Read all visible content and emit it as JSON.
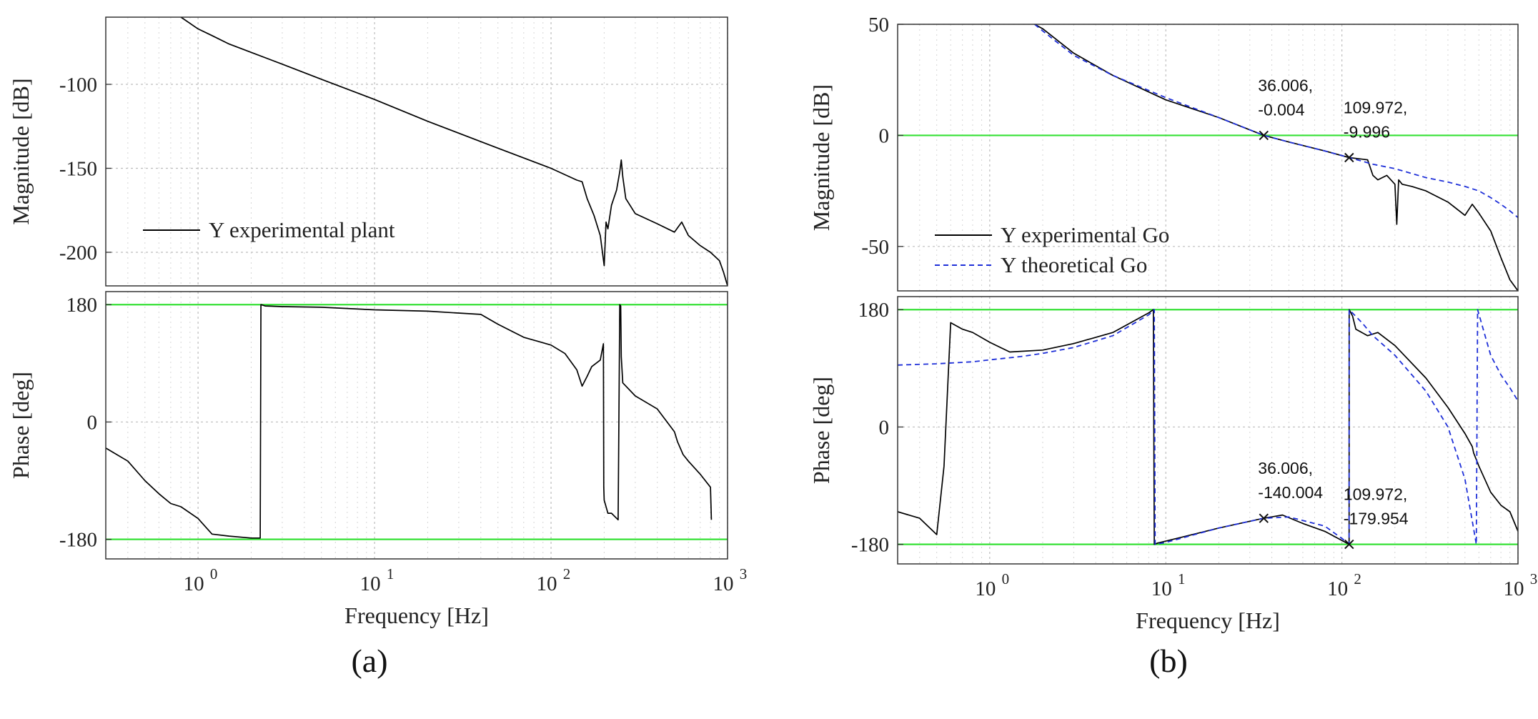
{
  "colors": {
    "experimental": "#000000",
    "theoretical": "#1e2fd8",
    "reference": "#35e135"
  },
  "panel_labels": [
    "(a)",
    "(b)"
  ],
  "chart_data": [
    {
      "id": "a-magnitude",
      "type": "line",
      "xscale": "log",
      "xlim": [
        0.3,
        1000
      ],
      "ylim": [
        -220,
        -60
      ],
      "ylabel": "Magnitude [dB]",
      "xlabel": "",
      "yticks": [
        -100,
        -150,
        -200
      ],
      "ytick_labels": [
        "-100",
        "-150",
        "-200"
      ],
      "legend": {
        "position": "lower-left",
        "entries": [
          "Y experimental plant"
        ]
      },
      "series": [
        {
          "name": "Y experimental plant",
          "style": "solid",
          "color": "experimental",
          "x": [
            0.8,
            1.0,
            1.2,
            1.5,
            2,
            3,
            5,
            10,
            20,
            50,
            100,
            140,
            150,
            160,
            175,
            190,
            200,
            205,
            210,
            220,
            235,
            245,
            250,
            255,
            265,
            300,
            400,
            500,
            550,
            600,
            700,
            800,
            900,
            950,
            1000
          ],
          "y": [
            -60,
            -67,
            -71,
            -76,
            -81,
            -88,
            -97,
            -109,
            -122,
            -138,
            -150,
            -157,
            -158,
            -168,
            -178,
            -190,
            -208,
            -182,
            -186,
            -172,
            -163,
            -152,
            -145,
            -155,
            -168,
            -177,
            -183,
            -188,
            -182,
            -190,
            -196,
            -200,
            -205,
            -212,
            -220
          ]
        }
      ]
    },
    {
      "id": "a-phase",
      "type": "line",
      "xscale": "log",
      "xlim": [
        0.3,
        1000
      ],
      "ylim": [
        -210,
        200
      ],
      "ylabel": "Phase [deg]",
      "xlabel": "Frequency [Hz]",
      "xticks": [
        1,
        10,
        100,
        1000
      ],
      "xtick_labels": [
        "10",
        "10",
        "10",
        "10"
      ],
      "xtick_exponents": [
        "0",
        "1",
        "2",
        "3"
      ],
      "yticks": [
        180,
        0,
        -180
      ],
      "ytick_labels": [
        "180",
        "0",
        "-180"
      ],
      "hlines": [
        180,
        -180
      ],
      "series": [
        {
          "name": "Y experimental plant",
          "style": "solid",
          "color": "experimental",
          "x": [
            0.3,
            0.4,
            0.5,
            0.6,
            0.7,
            0.8,
            1.0,
            1.2,
            1.5,
            2.0,
            2.25,
            2.27,
            2.4,
            3,
            5,
            10,
            20,
            40,
            50,
            70,
            100,
            120,
            140,
            150,
            160,
            170,
            190,
            198,
            199,
            200,
            205,
            210,
            220,
            240,
            245,
            248,
            250,
            255,
            300,
            400,
            500,
            520,
            560,
            600,
            700,
            800,
            810
          ],
          "y": [
            -40,
            -60,
            -90,
            -110,
            -125,
            -130,
            -148,
            -172,
            -175,
            -178,
            -178,
            180,
            178,
            177,
            176,
            172,
            170,
            165,
            150,
            130,
            118,
            105,
            80,
            55,
            70,
            85,
            95,
            120,
            -100,
            -120,
            -130,
            -140,
            -140,
            -150,
            180,
            178,
            100,
            60,
            40,
            20,
            -15,
            -30,
            -50,
            -60,
            -80,
            -100,
            -150
          ]
        }
      ]
    },
    {
      "id": "b-magnitude",
      "type": "line",
      "xscale": "log",
      "xlim": [
        0.3,
        1000
      ],
      "ylim": [
        -70,
        50
      ],
      "ylabel": "Magnitude [dB]",
      "xlabel": "",
      "yticks": [
        50,
        0,
        -50
      ],
      "ytick_labels": [
        "50",
        "0",
        "-50"
      ],
      "hlines": [
        0
      ],
      "legend": {
        "position": "lower-left",
        "entries": [
          "Y experimental Go",
          "Y theoretical Go"
        ]
      },
      "datatips": [
        {
          "x": 36.006,
          "y": -0.004,
          "label1": "36.006,",
          "label2": "-0.004"
        },
        {
          "x": 109.972,
          "y": -9.996,
          "label1": "109.972,",
          "label2": "-9.996"
        }
      ],
      "series": [
        {
          "name": "Y experimental Go",
          "style": "solid",
          "color": "experimental",
          "x": [
            1.8,
            2,
            3,
            5,
            10,
            20,
            36,
            50,
            80,
            110,
            140,
            150,
            160,
            180,
            200,
            205,
            210,
            220,
            250,
            300,
            400,
            500,
            550,
            600,
            700,
            800,
            900,
            1000
          ],
          "y": [
            50,
            48,
            37,
            27,
            16,
            8,
            0,
            -3,
            -7,
            -10,
            -11,
            -18,
            -20,
            -18,
            -22,
            -40,
            -20,
            -22,
            -23,
            -25,
            -30,
            -36,
            -31,
            -35,
            -43,
            -55,
            -65,
            -70
          ]
        },
        {
          "name": "Y theoretical Go",
          "style": "dashed",
          "color": "theoretical",
          "x": [
            1.8,
            2,
            3,
            5,
            10,
            20,
            36,
            50,
            80,
            110,
            150,
            200,
            300,
            400,
            500,
            600,
            700,
            800,
            900,
            1000
          ],
          "y": [
            50,
            47,
            36,
            27,
            17,
            8,
            0,
            -3,
            -7,
            -10,
            -13,
            -15,
            -19,
            -21,
            -23,
            -25,
            -28,
            -31,
            -34,
            -37
          ]
        }
      ]
    },
    {
      "id": "b-phase",
      "type": "line",
      "xscale": "log",
      "xlim": [
        0.3,
        1000
      ],
      "ylim": [
        -210,
        200
      ],
      "ylabel": "Phase [deg]",
      "xlabel": "Frequency [Hz]",
      "xticks": [
        1,
        10,
        100,
        1000
      ],
      "xtick_labels": [
        "10",
        "10",
        "10",
        "10"
      ],
      "xtick_exponents": [
        "0",
        "1",
        "2",
        "3"
      ],
      "yticks": [
        180,
        0,
        -180
      ],
      "ytick_labels": [
        "180",
        "0",
        "-180"
      ],
      "hlines": [
        180,
        -180
      ],
      "datatips": [
        {
          "x": 36.006,
          "y": -140.004,
          "label1": "36.006,",
          "label2": "-140.004"
        },
        {
          "x": 109.972,
          "y": -179.954,
          "label1": "109.972,",
          "label2": "-179.954"
        }
      ],
      "series": [
        {
          "name": "Y experimental Go",
          "style": "solid",
          "color": "experimental",
          "x": [
            0.3,
            0.4,
            0.5,
            0.55,
            0.6,
            0.7,
            0.8,
            1.0,
            1.3,
            2,
            3,
            5,
            8,
            8.5,
            8.6,
            9,
            10,
            20,
            36,
            46,
            60,
            80,
            109.9,
            110,
            115,
            120,
            140,
            160,
            200,
            300,
            400,
            500,
            550,
            560,
            600,
            700,
            800,
            900,
            1000
          ],
          "y": [
            -130,
            -140,
            -165,
            -60,
            160,
            150,
            145,
            130,
            115,
            118,
            128,
            145,
            175,
            180,
            -180,
            -178,
            -175,
            -155,
            -140,
            -135,
            -148,
            -160,
            -180,
            180,
            170,
            150,
            140,
            145,
            125,
            75,
            30,
            -10,
            -30,
            -40,
            -60,
            -100,
            -120,
            -130,
            -160
          ]
        },
        {
          "name": "Y theoretical Go",
          "style": "dashed",
          "color": "theoretical",
          "x": [
            0.3,
            0.5,
            0.8,
            1.0,
            1.5,
            2,
            3,
            5,
            8,
            8.6,
            8.7,
            10,
            20,
            36,
            50,
            80,
            109.9,
            110,
            130,
            150,
            200,
            300,
            400,
            500,
            580,
            590,
            700,
            800,
            900,
            1000
          ],
          "y": [
            95,
            97,
            100,
            103,
            108,
            113,
            122,
            140,
            172,
            180,
            -180,
            -177,
            -155,
            -140,
            -138,
            -152,
            -179,
            180,
            160,
            140,
            110,
            55,
            0,
            -80,
            -180,
            180,
            110,
            80,
            60,
            40
          ]
        }
      ]
    }
  ]
}
